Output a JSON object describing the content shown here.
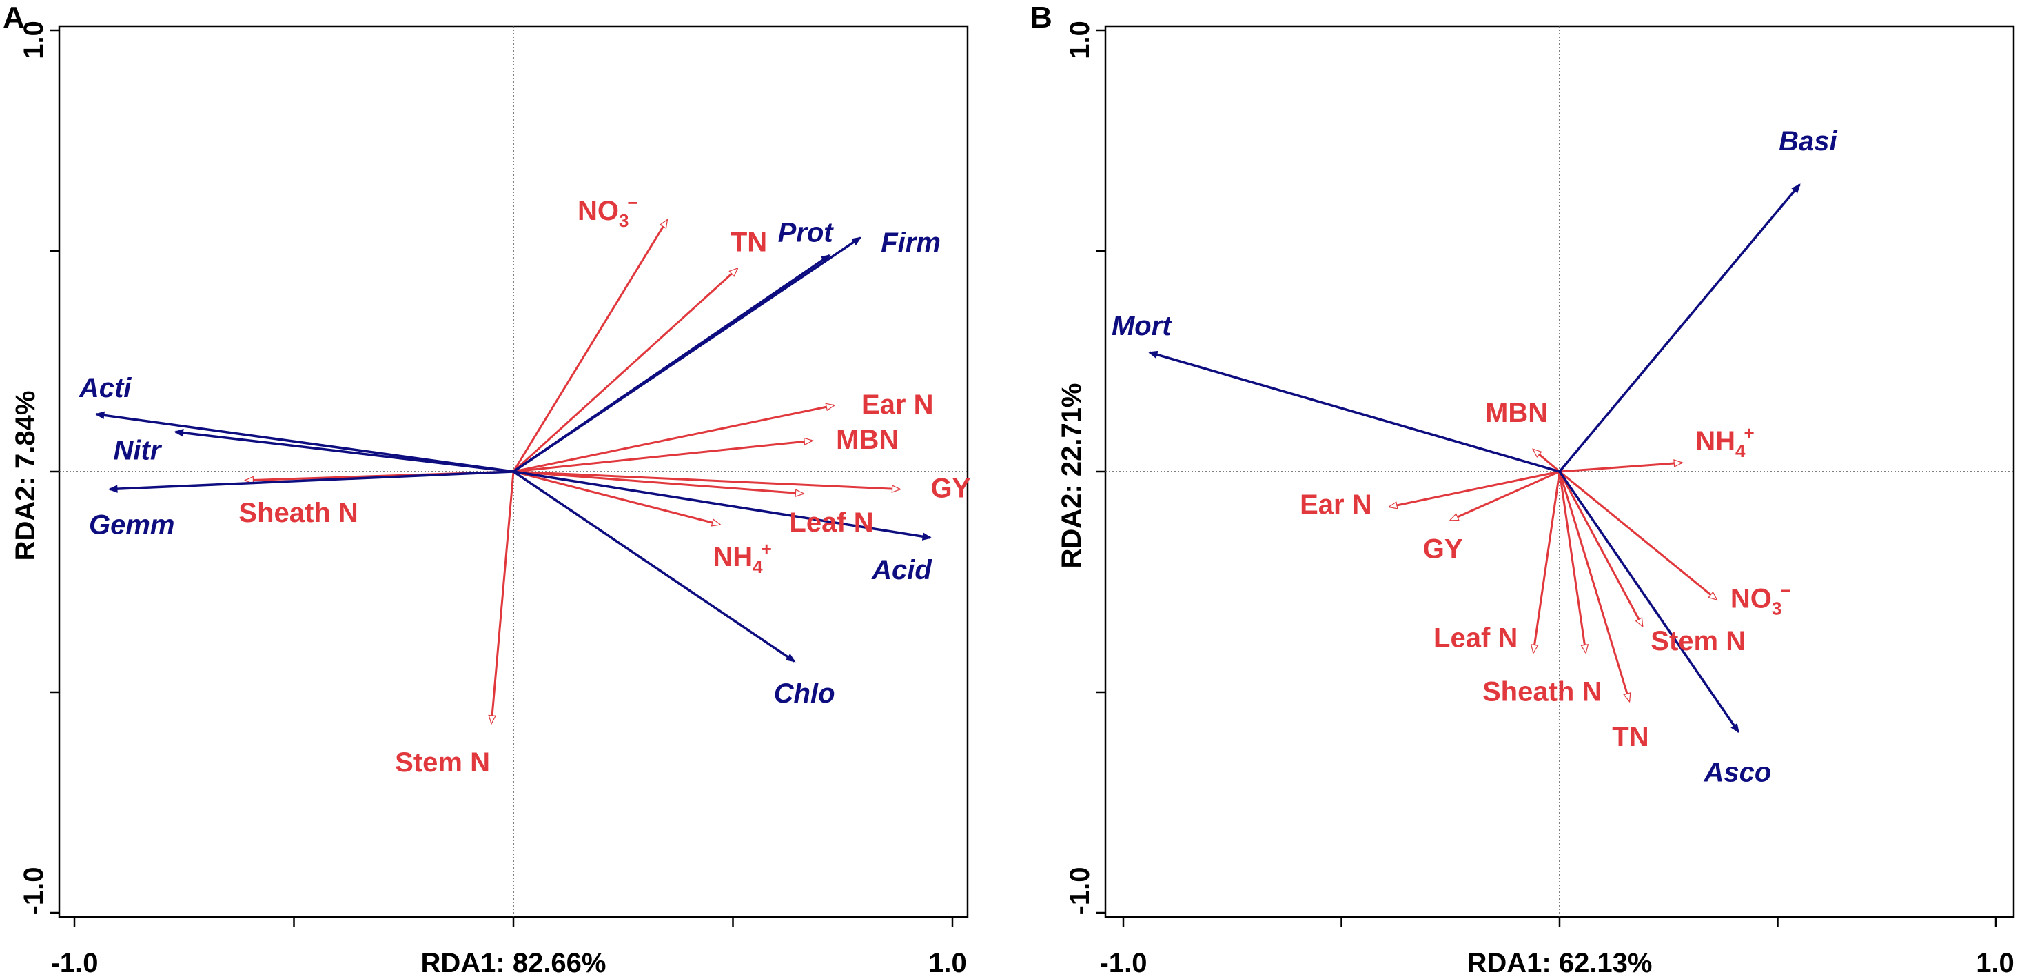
{
  "colors": {
    "env": "#e0383c",
    "taxa": "#0d0d80",
    "axis": "#000000",
    "refline": "#555555"
  },
  "chart_data": [
    {
      "panel": "A",
      "type": "scatter",
      "subtype": "rda-biplot",
      "xlabel": "RDA1: 82.66%",
      "ylabel": "RDA2: 7.84%",
      "xlim": [
        -1.0,
        1.0
      ],
      "ylim": [
        -1.0,
        1.0
      ],
      "x_tick_labels": [
        "-1.0",
        "1.0"
      ],
      "y_tick_labels": [
        "-1.0",
        "1.0"
      ],
      "env_vectors": [
        {
          "label": "NO",
          "sub": "3",
          "sup": "−",
          "x": 0.35,
          "y": 0.57
        },
        {
          "label": "TN",
          "x": 0.51,
          "y": 0.46
        },
        {
          "label": "Ear N",
          "x": 0.73,
          "y": 0.15
        },
        {
          "label": "MBN",
          "x": 0.68,
          "y": 0.07
        },
        {
          "label": "GY",
          "x": 0.88,
          "y": -0.04
        },
        {
          "label": "Leaf N",
          "x": 0.66,
          "y": -0.05
        },
        {
          "label": "NH",
          "sub": "4",
          "sup": "+",
          "x": 0.47,
          "y": -0.12
        },
        {
          "label": "Sheath N",
          "x": -0.61,
          "y": -0.02
        },
        {
          "label": "Stem N",
          "x": -0.05,
          "y": -0.57
        }
      ],
      "taxa_vectors": [
        {
          "label": "Prot",
          "x": 0.72,
          "y": 0.49
        },
        {
          "label": "Firm",
          "x": 0.79,
          "y": 0.53
        },
        {
          "label": "Acti",
          "x": -0.95,
          "y": 0.13
        },
        {
          "label": "Nitr",
          "x": -0.77,
          "y": 0.09
        },
        {
          "label": "Gemm",
          "x": -0.92,
          "y": -0.04
        },
        {
          "label": "Acid",
          "x": 0.95,
          "y": -0.15
        },
        {
          "label": "Chlo",
          "x": 0.64,
          "y": -0.43
        }
      ]
    },
    {
      "panel": "B",
      "type": "scatter",
      "subtype": "rda-biplot",
      "xlabel": "RDA1: 62.13%",
      "ylabel": "RDA2: 22.71%",
      "xlim": [
        -1.0,
        1.0
      ],
      "ylim": [
        -1.0,
        1.0
      ],
      "x_tick_labels": [
        "-1.0",
        "1.0"
      ],
      "y_tick_labels": [
        "-1.0",
        "1.0"
      ],
      "env_vectors": [
        {
          "label": "MBN",
          "x": -0.06,
          "y": 0.05
        },
        {
          "label": "NH",
          "sub": "4",
          "sup": "+",
          "x": 0.28,
          "y": 0.02
        },
        {
          "label": "Ear N",
          "x": -0.39,
          "y": -0.08
        },
        {
          "label": "GY",
          "x": -0.25,
          "y": -0.11
        },
        {
          "label": "NO",
          "sub": "3",
          "sup": "−",
          "x": 0.36,
          "y": -0.29
        },
        {
          "label": "Leaf N",
          "x": -0.06,
          "y": -0.41
        },
        {
          "label": "Sheath N",
          "x": 0.06,
          "y": -0.41
        },
        {
          "label": "Stem N",
          "x": 0.19,
          "y": -0.35
        },
        {
          "label": "TN",
          "x": 0.16,
          "y": -0.52
        }
      ],
      "taxa_vectors": [
        {
          "label": "Basi",
          "x": 0.55,
          "y": 0.65
        },
        {
          "label": "Mort",
          "x": -0.94,
          "y": 0.27
        },
        {
          "label": "Asco",
          "x": 0.41,
          "y": -0.59
        }
      ]
    }
  ]
}
